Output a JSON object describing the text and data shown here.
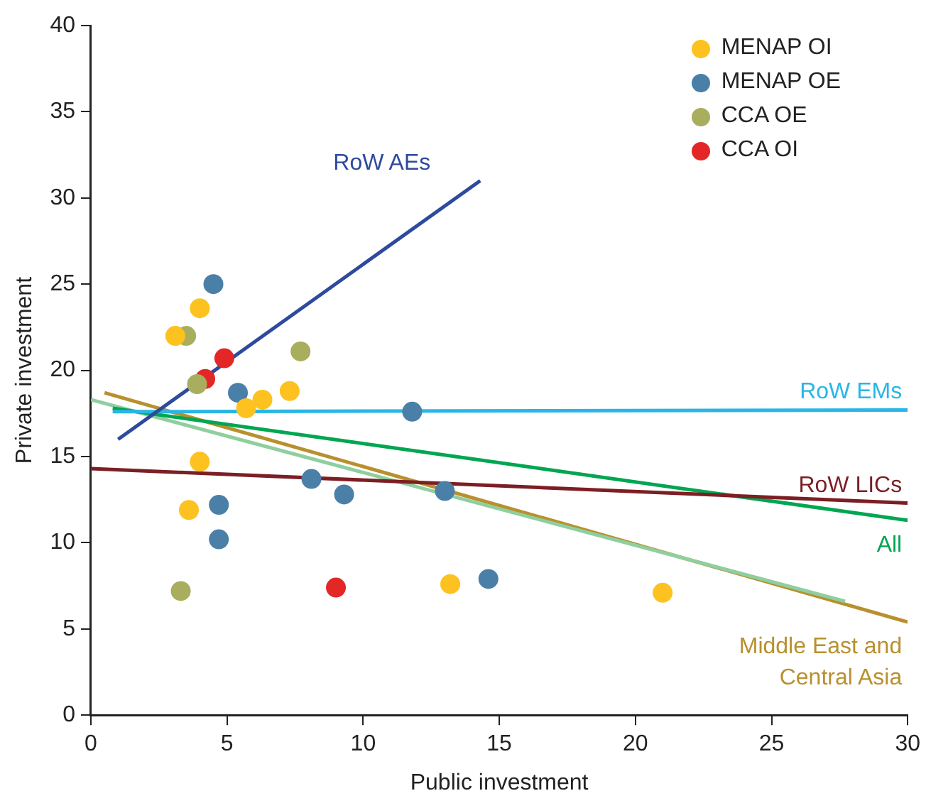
{
  "chart_data": {
    "type": "scatter",
    "xlabel": "Public investment",
    "ylabel": "Private investment",
    "xlim": [
      0,
      30
    ],
    "xticks": [
      0,
      5,
      10,
      15,
      20,
      25,
      30
    ],
    "ylim": [
      0,
      40
    ],
    "yticks": [
      0,
      5,
      10,
      15,
      20,
      25,
      30,
      35,
      40
    ],
    "grid": false,
    "legend": "top right",
    "series": [
      {
        "name": "MENAP OI",
        "marker": "circle",
        "color": "#fdc220",
        "x": [
          3.1,
          4.0,
          4.0,
          3.6,
          5.7,
          6.3,
          7.3,
          13.2,
          21.0
        ],
        "values": [
          22.0,
          23.6,
          14.7,
          11.9,
          17.8,
          18.3,
          18.8,
          7.6,
          7.1
        ]
      },
      {
        "name": "MENAP OE",
        "marker": "circle",
        "color": "#4a7fa8",
        "x": [
          4.5,
          5.4,
          4.7,
          4.7,
          8.1,
          9.3,
          11.8,
          13.0,
          14.6
        ],
        "values": [
          25.0,
          18.7,
          12.2,
          10.2,
          13.7,
          12.8,
          17.6,
          13.0,
          7.9
        ]
      },
      {
        "name": "CCA OE",
        "marker": "circle",
        "color": "#a9ae5e",
        "x": [
          3.5,
          3.9,
          7.7,
          3.3
        ],
        "values": [
          22.0,
          19.2,
          21.1,
          7.2
        ]
      },
      {
        "name": "CCA OI",
        "marker": "circle",
        "color": "#e32726",
        "x": [
          4.9,
          4.2,
          9.0
        ],
        "values": [
          20.7,
          19.5,
          7.4
        ]
      },
      {
        "name": "RoW AEs",
        "type": "line",
        "marker": "none",
        "color": "#2e4a9e",
        "x": [
          1.0,
          14.3
        ],
        "values": [
          16.0,
          31.0
        ]
      },
      {
        "name": "RoW EMs",
        "type": "line",
        "marker": "none",
        "color": "#29b6e6",
        "x": [
          0.8,
          30
        ],
        "values": [
          17.6,
          17.7
        ]
      },
      {
        "name": "RoW LICs",
        "type": "line",
        "marker": "none",
        "color": "#7b1f24",
        "x": [
          0,
          30
        ],
        "values": [
          14.3,
          12.3
        ]
      },
      {
        "name": "All",
        "type": "line",
        "marker": "none",
        "color": "#00a651",
        "x": [
          0.8,
          30
        ],
        "values": [
          17.8,
          11.3
        ]
      },
      {
        "type": "line",
        "marker": "none",
        "color": "#8fcf9f",
        "x": [
          0,
          27.7
        ],
        "values": [
          18.3,
          6.6
        ]
      },
      {
        "name": "Middle East and Central Asia",
        "type": "line",
        "marker": "none",
        "color": "#b8902e",
        "x": [
          0.5,
          30
        ],
        "values": [
          18.7,
          5.4
        ]
      }
    ]
  }
}
